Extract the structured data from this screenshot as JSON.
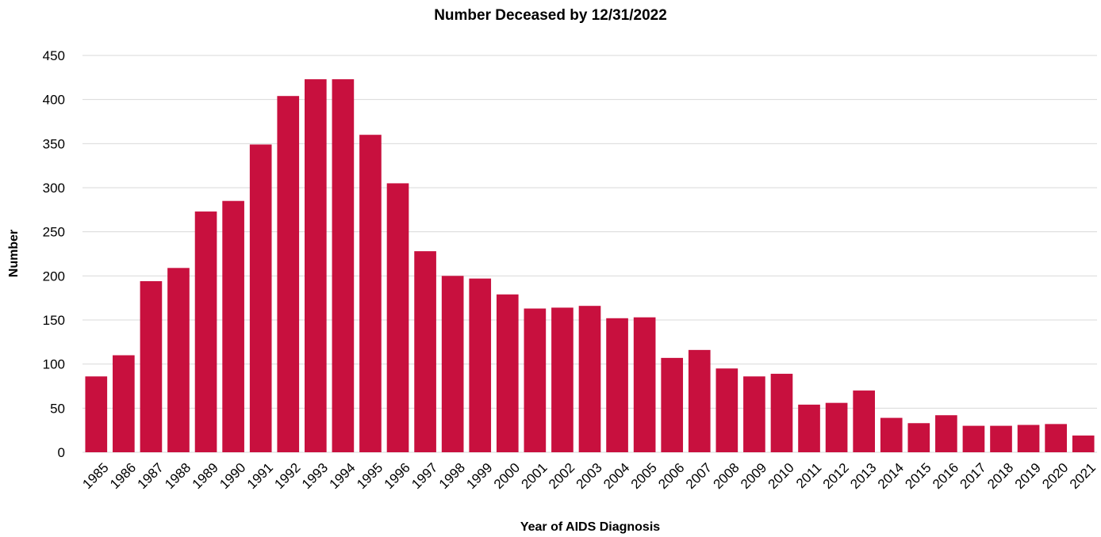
{
  "chart_data": {
    "type": "bar",
    "title": "Number Deceased by 12/31/2022",
    "xlabel": "Year of AIDS Diagnosis",
    "ylabel": "Number",
    "ylim": [
      0,
      450
    ],
    "yticks": [
      0,
      50,
      100,
      150,
      200,
      250,
      300,
      350,
      400,
      450
    ],
    "grid": true,
    "bar_color": "#c8103e",
    "categories": [
      "1985",
      "1986",
      "1987",
      "1988",
      "1989",
      "1990",
      "1991",
      "1992",
      "1993",
      "1994",
      "1995",
      "1996",
      "1997",
      "1998",
      "1999",
      "2000",
      "2001",
      "2002",
      "2003",
      "2004",
      "2005",
      "2006",
      "2007",
      "2008",
      "2009",
      "2010",
      "2011",
      "2012",
      "2013",
      "2014",
      "2015",
      "2016",
      "2017",
      "2018",
      "2019",
      "2020",
      "2021"
    ],
    "values": [
      86,
      110,
      194,
      209,
      273,
      285,
      349,
      404,
      423,
      423,
      360,
      305,
      228,
      200,
      197,
      179,
      163,
      164,
      166,
      152,
      153,
      107,
      116,
      95,
      86,
      89,
      54,
      56,
      70,
      39,
      33,
      42,
      30,
      30,
      31,
      32,
      19
    ]
  }
}
